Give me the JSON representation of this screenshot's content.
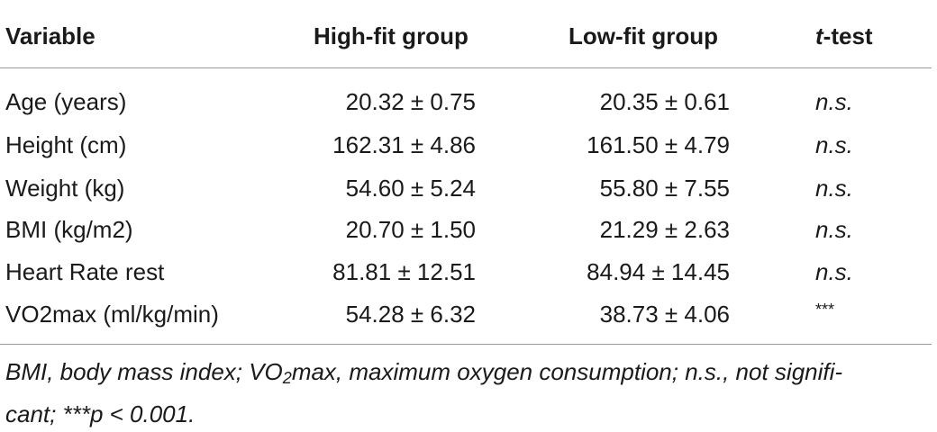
{
  "table": {
    "headers": {
      "variable": "Variable",
      "high_fit": "High-fit group",
      "low_fit": "Low-fit group",
      "ttest_italic": "t",
      "ttest_rest": "-test"
    },
    "rows": [
      {
        "variable": "Age (years)",
        "high_fit": "20.32 ± 0.75",
        "low_fit": "20.35 ± 0.61",
        "ttest": "n.s."
      },
      {
        "variable": "Height (cm)",
        "high_fit": "162.31 ± 4.86",
        "low_fit": "161.50 ± 4.79",
        "ttest": "n.s."
      },
      {
        "variable": "Weight (kg)",
        "high_fit": "54.60 ± 5.24",
        "low_fit": "55.80 ± 7.55",
        "ttest": "n.s."
      },
      {
        "variable": "BMI (kg/m2)",
        "high_fit": "20.70 ± 1.50",
        "low_fit": "21.29 ± 2.63",
        "ttest": "n.s."
      },
      {
        "variable": "Heart Rate rest",
        "high_fit": "81.81 ± 12.51",
        "low_fit": "84.94 ± 14.45",
        "ttest": "n.s."
      },
      {
        "variable": "VO2max (ml/kg/min)",
        "high_fit": "54.28 ± 6.32",
        "low_fit": "38.73 ± 4.06",
        "ttest": "***"
      }
    ]
  },
  "footnote": {
    "part1": "BMI, body mass index; VO",
    "subscript": "2",
    "part2": "max, maximum oxygen consumption; n.s., not signifi-",
    "line2": "cant; ***p < 0.001."
  }
}
